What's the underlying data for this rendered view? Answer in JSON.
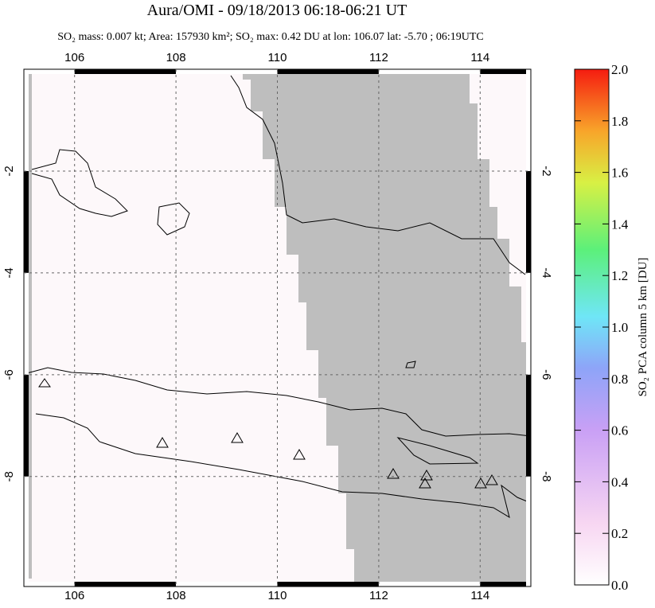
{
  "title": "Aura/OMI - 09/18/2013 06:18-06:21 UT",
  "subtitle": "SO₂ mass: 0.007 kt; Area: 157930 km²; SO₂ max: 0.42 DU at lon: 106.07 lat: -5.70 ; 06:19UTC",
  "map": {
    "xlim": [
      105,
      115
    ],
    "ylim": [
      -10.16,
      0
    ],
    "xticks": [
      106,
      108,
      110,
      112,
      114
    ],
    "yticks": [
      -2,
      -4,
      -6,
      -8
    ]
  },
  "colorbar": {
    "label": "SO₂ PCA column 5 km [DU]",
    "lim": [
      0,
      2
    ],
    "ticks": [
      {
        "value": 0,
        "label": "0.0"
      },
      {
        "value": 0.2,
        "label": "0.2"
      },
      {
        "value": 0.4,
        "label": "0.4"
      },
      {
        "value": 0.6,
        "label": "0.6"
      },
      {
        "value": 0.8,
        "label": "0.8"
      },
      {
        "value": 1.0,
        "label": "1.0"
      },
      {
        "value": 1.2,
        "label": "1.2"
      },
      {
        "value": 1.4,
        "label": "1.4"
      },
      {
        "value": 1.6,
        "label": "1.6"
      },
      {
        "value": 1.8,
        "label": "1.8"
      },
      {
        "value": 2.0,
        "label": "2.0"
      }
    ]
  }
}
